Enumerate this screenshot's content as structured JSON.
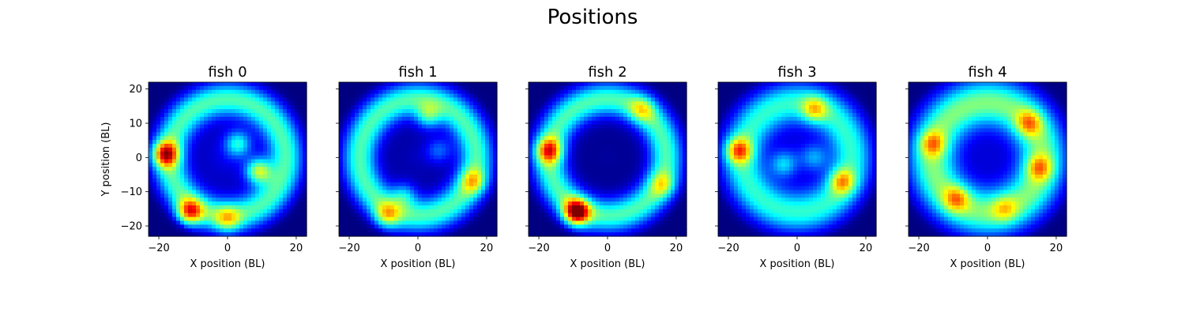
{
  "figure": {
    "title": "Positions"
  },
  "chart_data": [
    {
      "type": "heatmap",
      "title": "fish 0",
      "xlabel": "X position (BL)",
      "ylabel": "Y position (BL)",
      "xlim": [
        -23,
        23
      ],
      "ylim": [
        -23,
        22
      ],
      "xticks": [
        -20,
        0,
        20
      ],
      "yticks": [
        20,
        10,
        0,
        -10,
        -20
      ],
      "colormap": "jet",
      "ring_radius": 17,
      "ring_width": 5,
      "ring_peak": 0.45,
      "center_level": 0.18,
      "hotspots": [
        {
          "x": -18,
          "y": 1,
          "value": 0.85
        },
        {
          "x": -11,
          "y": -16,
          "value": 0.8
        },
        {
          "x": 9,
          "y": -4,
          "value": 0.75
        },
        {
          "x": 3,
          "y": 4,
          "value": 0.6
        },
        {
          "x": 0,
          "y": -18,
          "value": 0.55
        }
      ]
    },
    {
      "type": "heatmap",
      "title": "fish 1",
      "xlabel": "X position (BL)",
      "ylabel": "",
      "xlim": [
        -23,
        23
      ],
      "ylim": [
        -23,
        22
      ],
      "xticks": [
        -20,
        0,
        20
      ],
      "yticks": [
        20,
        10,
        0,
        -10,
        -20
      ],
      "colormap": "jet",
      "ring_radius": 17,
      "ring_width": 5,
      "ring_peak": 0.45,
      "center_level": 0.1,
      "hotspots": [
        {
          "x": -9,
          "y": -17,
          "value": 0.6
        },
        {
          "x": 3,
          "y": 12,
          "value": 0.55
        },
        {
          "x": 16,
          "y": -7,
          "value": 0.55
        },
        {
          "x": -4,
          "y": -11,
          "value": 0.5
        },
        {
          "x": 6,
          "y": 2,
          "value": 0.45
        }
      ]
    },
    {
      "type": "heatmap",
      "title": "fish 2",
      "xlabel": "X position (BL)",
      "ylabel": "",
      "xlim": [
        -23,
        23
      ],
      "ylim": [
        -23,
        22
      ],
      "xticks": [
        -20,
        0,
        20
      ],
      "yticks": [
        20,
        10,
        0,
        -10,
        -20
      ],
      "colormap": "jet",
      "ring_radius": 17,
      "ring_width": 5,
      "ring_peak": 0.45,
      "center_level": 0.05,
      "hotspots": [
        {
          "x": -9,
          "y": -16,
          "value": 1.0
        },
        {
          "x": -17,
          "y": 2,
          "value": 0.75
        },
        {
          "x": 10,
          "y": 14,
          "value": 0.5
        },
        {
          "x": 16,
          "y": -8,
          "value": 0.5
        }
      ]
    },
    {
      "type": "heatmap",
      "title": "fish 3",
      "xlabel": "X position (BL)",
      "ylabel": "",
      "xlim": [
        -23,
        23
      ],
      "ylim": [
        -23,
        22
      ],
      "xticks": [
        -20,
        0,
        20
      ],
      "yticks": [
        20,
        10,
        0,
        -10,
        -20
      ],
      "colormap": "jet",
      "ring_radius": 16,
      "ring_width": 6,
      "ring_peak": 0.42,
      "center_level": 0.2,
      "hotspots": [
        {
          "x": -17,
          "y": 2,
          "value": 0.7
        },
        {
          "x": 13,
          "y": -7,
          "value": 0.6
        },
        {
          "x": 5,
          "y": 14,
          "value": 0.55
        },
        {
          "x": -4,
          "y": -2,
          "value": 0.5
        },
        {
          "x": 5,
          "y": 0,
          "value": 0.45
        }
      ]
    },
    {
      "type": "heatmap",
      "title": "fish 4",
      "xlabel": "X position (BL)",
      "ylabel": "",
      "xlim": [
        -23,
        23
      ],
      "ylim": [
        -23,
        22
      ],
      "xticks": [
        -20,
        0,
        20
      ],
      "yticks": [
        20,
        10,
        0,
        -10,
        -20
      ],
      "colormap": "jet",
      "ring_radius": 16,
      "ring_width": 7,
      "ring_peak": 0.5,
      "center_level": 0.15,
      "hotspots": [
        {
          "x": -16,
          "y": 4,
          "value": 0.6
        },
        {
          "x": 12,
          "y": 10,
          "value": 0.6
        },
        {
          "x": 15,
          "y": -3,
          "value": 0.6
        },
        {
          "x": -9,
          "y": -12,
          "value": 0.6
        },
        {
          "x": 5,
          "y": -15,
          "value": 0.5
        }
      ]
    }
  ]
}
